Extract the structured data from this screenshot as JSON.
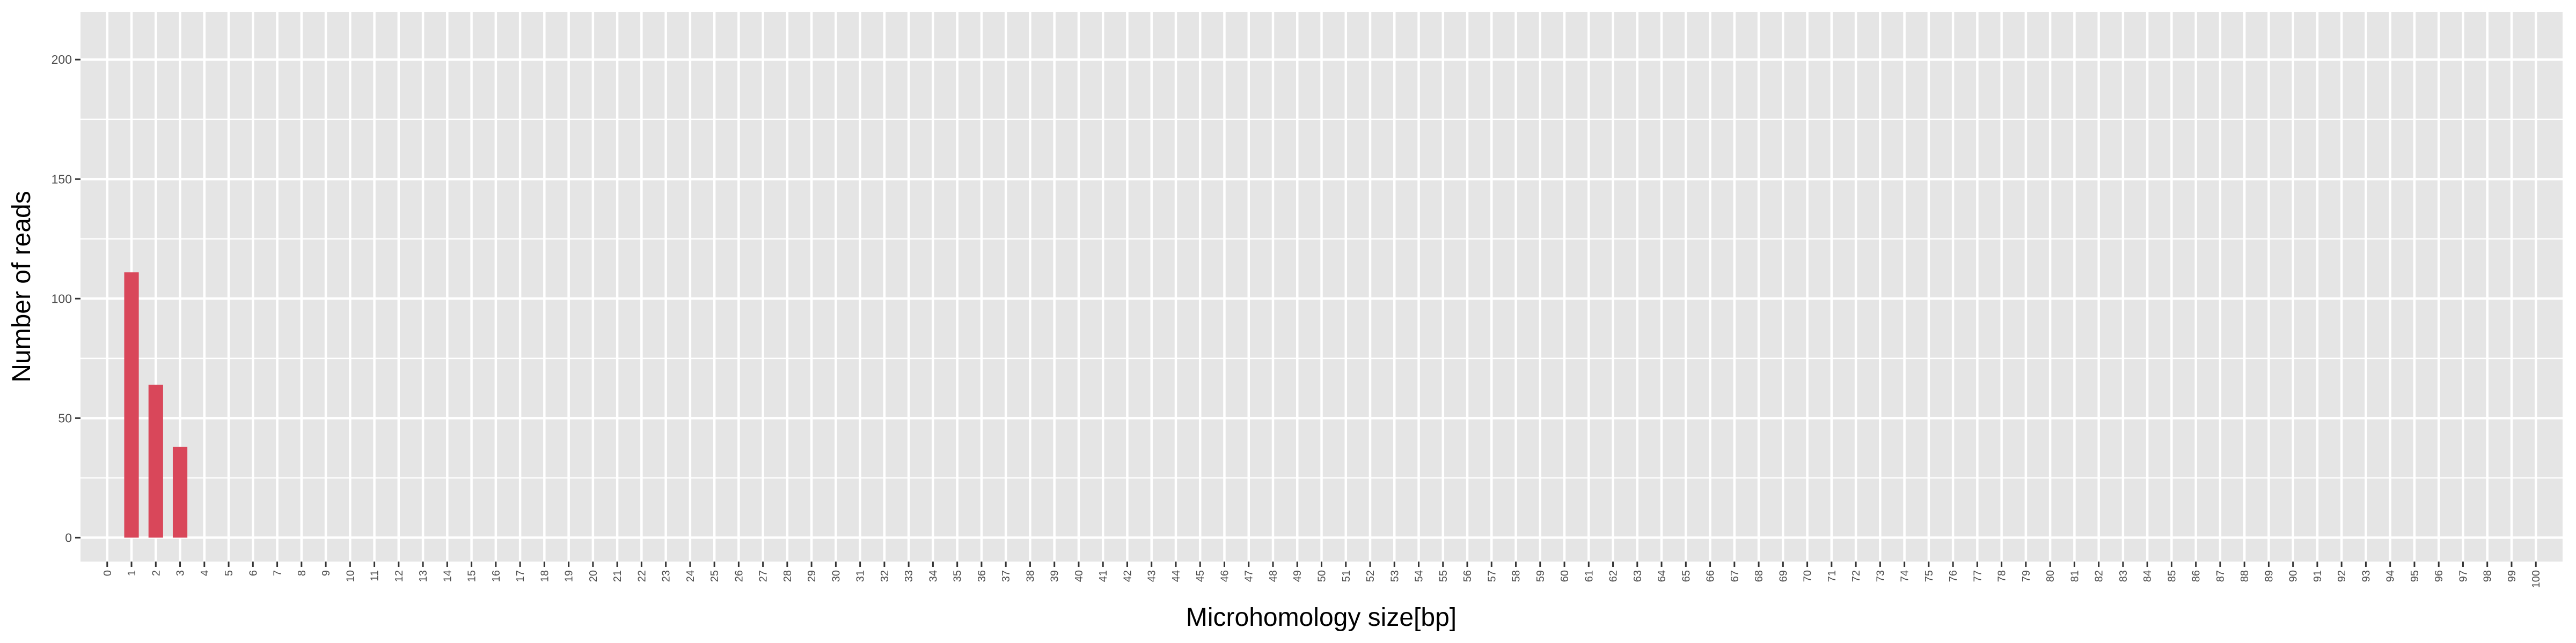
{
  "chart_data": {
    "type": "bar",
    "xlabel": "Microhomology size[bp]",
    "ylabel": "Number of reads",
    "x_categories_range": [
      0,
      100
    ],
    "values": [
      {
        "x": 1,
        "y": 111
      },
      {
        "x": 2,
        "y": 64
      },
      {
        "x": 3,
        "y": 38
      }
    ],
    "y_ticks": [
      0,
      50,
      100,
      150,
      200
    ],
    "ylim": [
      -10,
      220
    ],
    "grid": true,
    "legend": "none",
    "colors": {
      "bar_fill": "#d9475a",
      "panel_background": "#e5e5e5",
      "grid_line": "#ffffff",
      "tick_text": "#4d4d4d"
    }
  }
}
